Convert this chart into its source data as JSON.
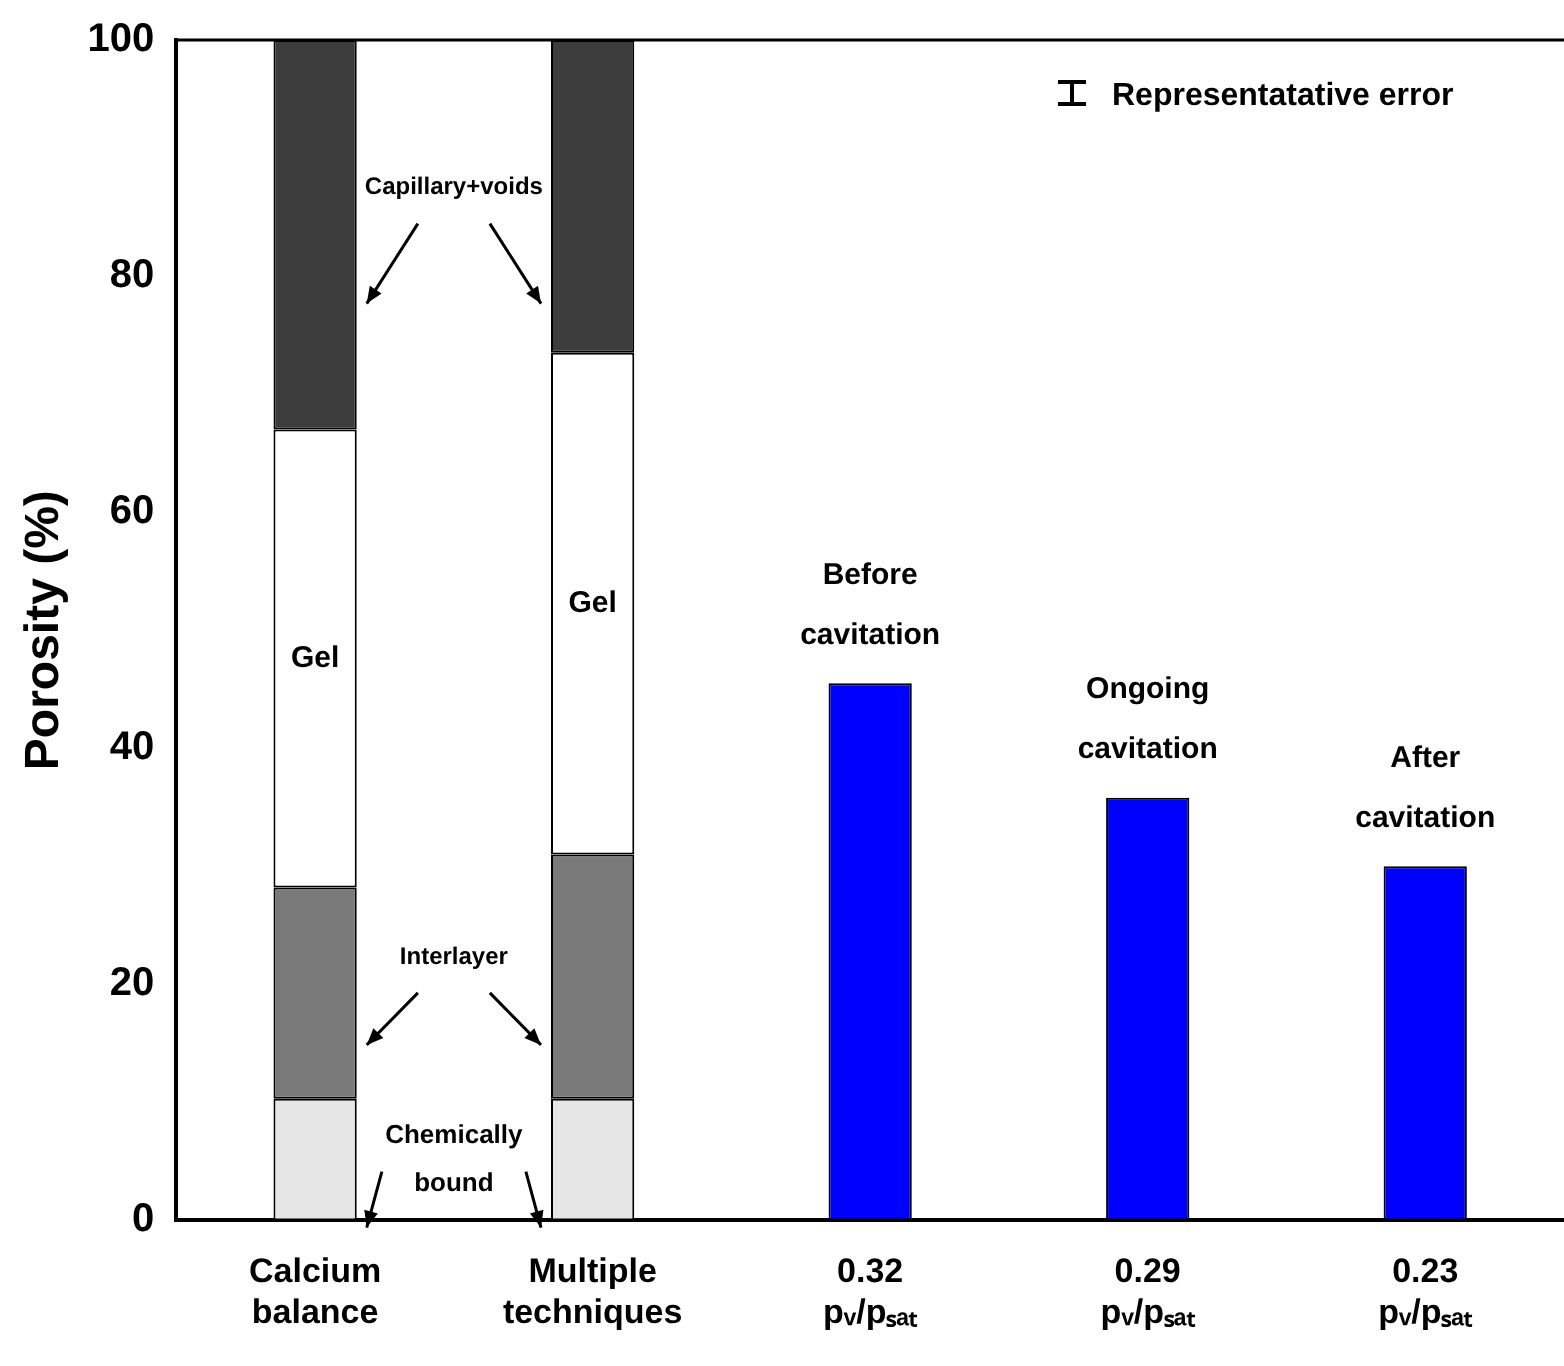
{
  "chart_data": {
    "type": "bar",
    "stacked": true,
    "ylabel": "Porosity (%)",
    "ylim": [
      0,
      100
    ],
    "yticks": [
      0,
      20,
      40,
      60,
      80,
      100
    ],
    "grid": false,
    "categories": [
      "Calcium balance",
      "Multiple techniques",
      "0.32 pᵥ/pₛₐₜ",
      "0.29 pᵥ/pₛₐₜ",
      "0.23 pᵥ/pₛₐₜ"
    ],
    "series": [
      {
        "name": "Chemically bound",
        "color": "#e6e6e6",
        "values": [
          10.3,
          10.3,
          null,
          null,
          null
        ]
      },
      {
        "name": "Interlayer",
        "color": "#7a7a7a",
        "values": [
          17.9,
          20.7,
          null,
          null,
          null
        ]
      },
      {
        "name": "Gel",
        "color": "#ffffff",
        "values": [
          38.8,
          42.5,
          null,
          null,
          null
        ]
      },
      {
        "name": "Capillary+voids",
        "color": "#3c3c3c",
        "values": [
          33,
          26.5,
          null,
          null,
          null
        ]
      },
      {
        "color": "#0000ff",
        "values": [
          null,
          null,
          45.5,
          35.8,
          30
        ]
      }
    ],
    "annotations": [
      "Representatative error",
      {
        "text": "Before cavitation",
        "x": "0.32 pᵥ/pₛₐₜ",
        "y": 45.5
      },
      {
        "text": "Ongoing cavitation",
        "x": "0.29 pᵥ/pₛₐₜ",
        "y": 35.8
      },
      {
        "text": "After cavitation",
        "x": "0.23 pᵥ/pₛₐₜ",
        "y": 30
      }
    ]
  }
}
